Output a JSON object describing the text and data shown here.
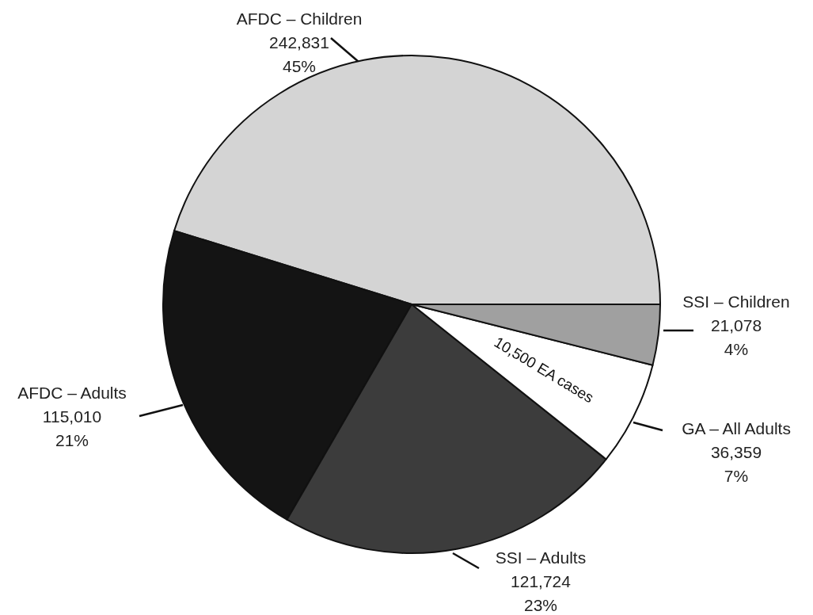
{
  "chart_data": {
    "type": "pie",
    "categories": [
      "AFDC – Children",
      "AFDC – Adults",
      "SSI – Adults",
      "GA – All Adults",
      "SSI – Children"
    ],
    "values": [
      242831,
      115010,
      121724,
      36359,
      21078
    ],
    "value_labels": [
      "242,831\n45%",
      "115,010\n21%",
      "121,724\n23%",
      "36,359\n7%",
      "21,078\n4%"
    ],
    "colors": [
      "#d4d4d4",
      "#141414",
      "#3c3c3c",
      "#ffffff",
      "#a0a0a0"
    ],
    "annotations": [
      "10,500 EA cases"
    ],
    "legend": false
  }
}
